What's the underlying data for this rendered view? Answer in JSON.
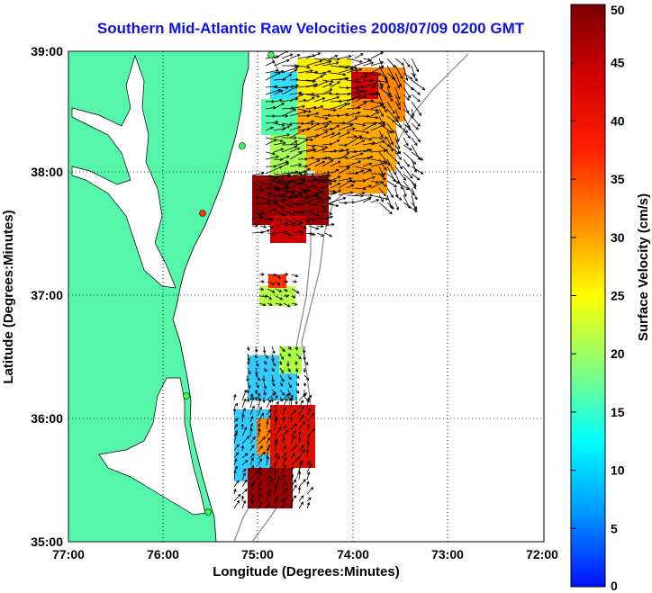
{
  "title": "Southern Mid-Atlantic Raw Velocities 2008/07/09 0200 GMT",
  "map": {
    "xlabel": "Longitude (Degrees:Minutes)",
    "ylabel": "Latitude (Degrees:Minutes)",
    "x_ticks": [
      "77:00",
      "76:00",
      "75:00",
      "74:00",
      "73:00",
      "72:00"
    ],
    "y_ticks": [
      "39:00",
      "38:00",
      "37:00",
      "36:00",
      "35:00"
    ],
    "colors": {
      "land": "#55f5aa",
      "water": "#ffffff",
      "bathymetry": "#888888"
    }
  },
  "colorbar": {
    "label": "Surface Velocity (cm/s)",
    "ticks": [
      "50",
      "45",
      "40",
      "35",
      "30",
      "25",
      "20",
      "15",
      "10",
      "5",
      "0"
    ],
    "min": 0,
    "max": 50,
    "colormap": "jet"
  }
}
